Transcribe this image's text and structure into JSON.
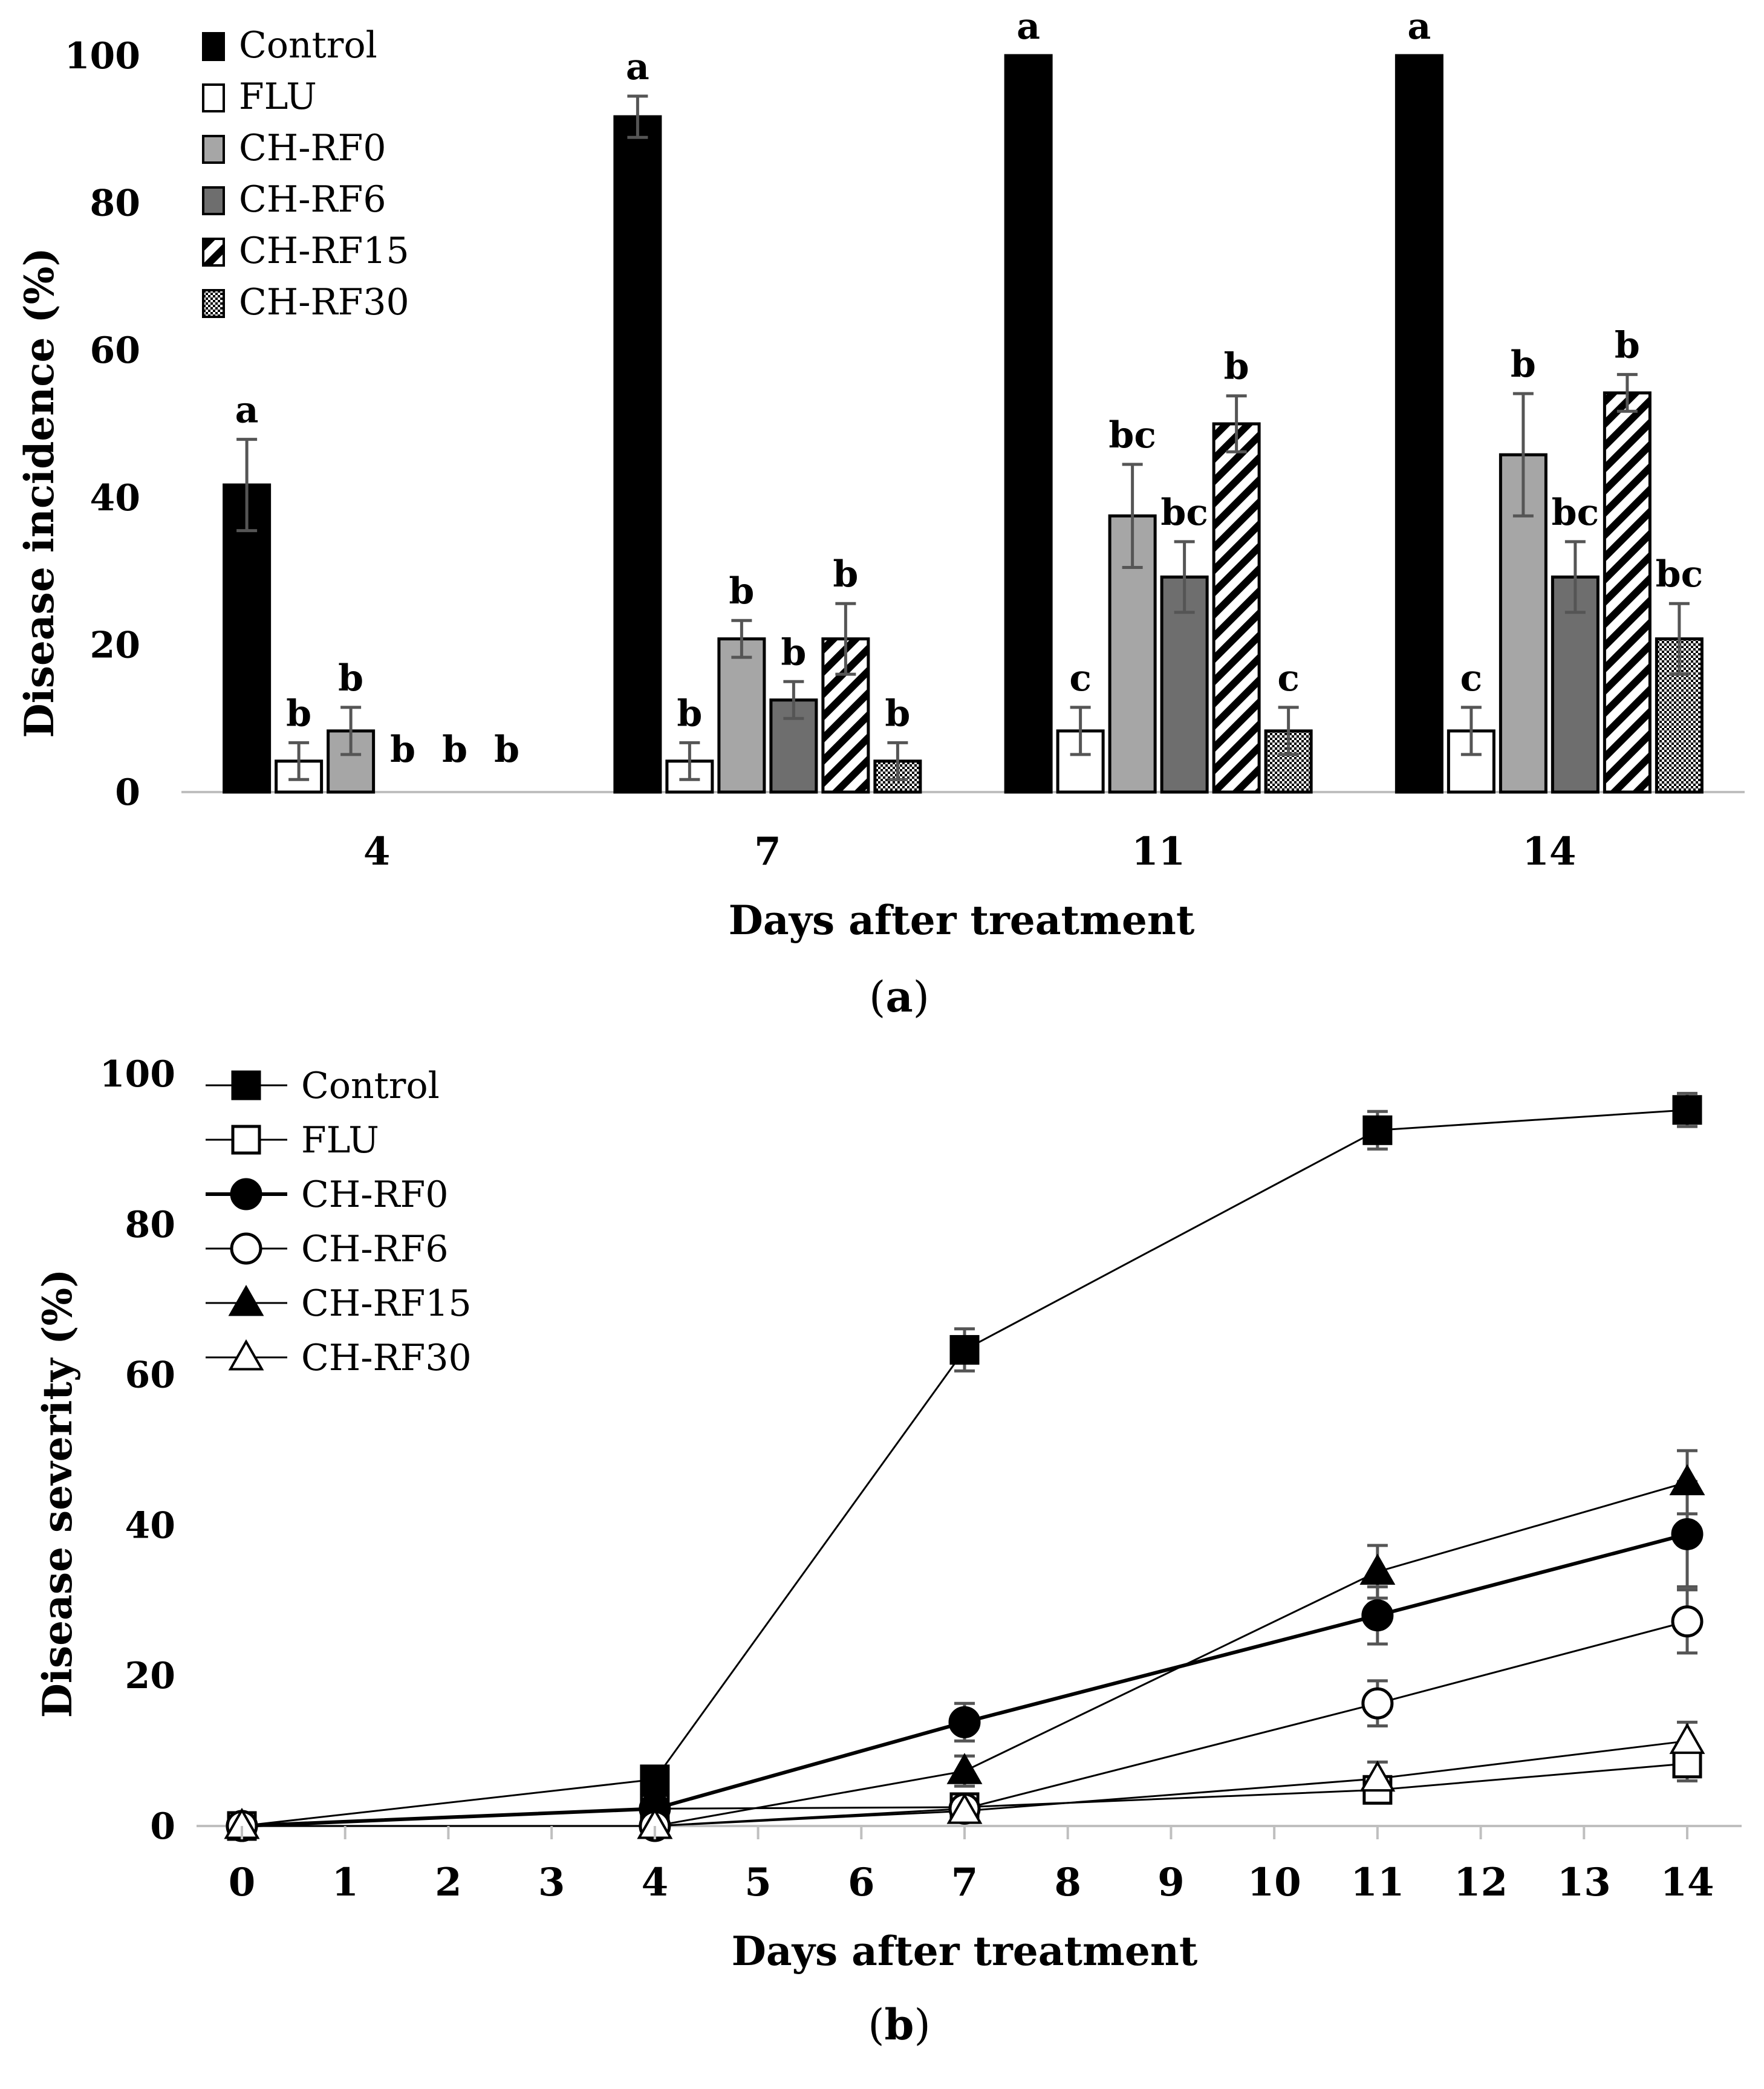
{
  "figure_a": {
    "caption": {
      "open": "(",
      "label": "a",
      "close": ")"
    },
    "chart_data": {
      "type": "bar",
      "categories": [
        "4",
        "7",
        "11",
        "14"
      ],
      "xlabel": "Days after treatment",
      "ylabel": "Disease incidence (%)",
      "ylim": [
        0,
        100
      ],
      "yticks": [
        "0",
        "20",
        "40",
        "60",
        "80",
        "100"
      ],
      "legend_position": "top-left",
      "series": [
        {
          "name": "Control",
          "fill": "solid-black",
          "values": [
            41.7,
            91.7,
            100,
            100
          ],
          "errors": [
            6.2,
            2.8,
            0,
            0
          ],
          "letters": [
            "a",
            "a",
            "a",
            "a"
          ]
        },
        {
          "name": "FLU",
          "fill": "white",
          "values": [
            4.2,
            4.2,
            8.3,
            8.3
          ],
          "errors": [
            2.5,
            2.5,
            3.2,
            3.2
          ],
          "letters": [
            "b",
            "b",
            "c",
            "c"
          ]
        },
        {
          "name": "CH-RF0",
          "fill": "light-gray",
          "values": [
            8.3,
            20.8,
            37.5,
            45.8
          ],
          "errors": [
            3.2,
            2.5,
            7.0,
            8.3
          ],
          "letters": [
            "b",
            "b",
            "bc",
            "b"
          ]
        },
        {
          "name": "CH-RF6",
          "fill": "dark-gray",
          "values": [
            0,
            12.5,
            29.2,
            29.2
          ],
          "errors": [
            0,
            2.5,
            4.8,
            4.8
          ],
          "letters": [
            "b",
            "b",
            "bc",
            "bc"
          ]
        },
        {
          "name": "CH-RF15",
          "fill": "diagonal-stripes",
          "values": [
            0,
            20.8,
            50,
            54.2
          ],
          "errors": [
            0,
            4.8,
            3.8,
            2.5
          ],
          "letters": [
            "b",
            "b",
            "b",
            "b"
          ]
        },
        {
          "name": "CH-RF30",
          "fill": "stipple",
          "values": [
            0,
            4.2,
            8.3,
            20.8
          ],
          "errors": [
            0,
            2.5,
            3.2,
            4.8
          ],
          "letters": [
            "b",
            "b",
            "c",
            "bc"
          ]
        }
      ]
    }
  },
  "figure_b": {
    "caption": {
      "open": "(",
      "label": "b",
      "close": ")"
    },
    "chart_data": {
      "type": "line",
      "x": [
        0,
        4,
        7,
        11,
        14
      ],
      "xlim": [
        0,
        14
      ],
      "xticks": [
        "0",
        "1",
        "2",
        "3",
        "4",
        "5",
        "6",
        "7",
        "8",
        "9",
        "10",
        "11",
        "12",
        "13",
        "14"
      ],
      "xlabel": "Days after treatment",
      "ylabel": "Disease severity (%)",
      "ylim": [
        0,
        100
      ],
      "yticks": [
        "0",
        "20",
        "40",
        "60",
        "80",
        "100"
      ],
      "legend_position": "top-left",
      "series": [
        {
          "name": "Control",
          "marker": "square-filled",
          "values": [
            0,
            6.2,
            63.3,
            92.5,
            95.2
          ],
          "errors": [
            0,
            0,
            2.8,
            2.5,
            2.2
          ]
        },
        {
          "name": "FLU",
          "marker": "square-open",
          "values": [
            0,
            2.3,
            2.5,
            4.8,
            8.3
          ],
          "errors": [
            0,
            0,
            0.6,
            1.3,
            2.3
          ]
        },
        {
          "name": "CH-RF0",
          "marker": "circle-filled",
          "values": [
            0,
            2.3,
            13.8,
            28.0,
            38.8
          ],
          "errors": [
            0,
            0,
            2.5,
            3.8,
            7.0
          ]
        },
        {
          "name": "CH-RF6",
          "marker": "circle-open",
          "values": [
            0,
            0,
            2.3,
            16.3,
            27.2
          ],
          "errors": [
            0,
            0,
            0.8,
            3.0,
            4.2
          ]
        },
        {
          "name": "CH-RF15",
          "marker": "triangle-filled",
          "values": [
            0,
            0,
            7.3,
            33.8,
            45.7
          ],
          "errors": [
            0,
            0,
            2.0,
            3.5,
            4.2
          ]
        },
        {
          "name": "CH-RF30",
          "marker": "triangle-open",
          "values": [
            0,
            0,
            2.0,
            6.3,
            11.3
          ],
          "errors": [
            0,
            0,
            0.8,
            2.2,
            2.5
          ]
        }
      ]
    }
  }
}
